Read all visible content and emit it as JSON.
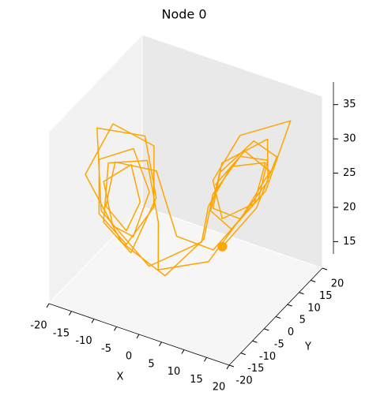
{
  "chart_data": {
    "type": "line3d",
    "title": "Node 0",
    "xlabel": "X",
    "ylabel": "Y",
    "xlim": [
      -20,
      20
    ],
    "ylim": [
      -20,
      20
    ],
    "zlim": [
      13.2,
      38.3
    ],
    "xticks": [
      -20,
      -15,
      -10,
      -5,
      0,
      5,
      10,
      15,
      20
    ],
    "yticks": [
      -20,
      -15,
      -10,
      -5,
      0,
      5,
      10,
      15,
      20
    ],
    "zticks": [
      15,
      20,
      25,
      30,
      35
    ],
    "series": [
      {
        "color": "#ffa500",
        "x": [
          4,
          9,
          13,
          11,
          6,
          4,
          6,
          10,
          12,
          9,
          5,
          3,
          -2,
          -8,
          -14,
          -12,
          -6,
          -5,
          -8,
          -12,
          -13,
          -9,
          -6,
          -7,
          -10,
          -12,
          -9,
          -7,
          -8,
          -11,
          -11,
          -6,
          -2,
          3,
          10,
          15,
          10,
          5,
          5,
          9,
          12,
          8,
          4,
          2,
          -4,
          -11,
          -14,
          -8,
          -5,
          -7,
          -11,
          -12,
          -7,
          -4,
          -3,
          3,
          11,
          13,
          7,
          4,
          7,
          12,
          10,
          5
        ],
        "y": [
          8,
          13,
          14,
          8,
          3,
          3,
          8,
          12,
          12,
          6,
          2,
          2,
          -5,
          -12,
          -16,
          -8,
          -2,
          -4,
          -10,
          -14,
          -12,
          -5,
          -4,
          -9,
          -12,
          -12,
          -6,
          -6,
          -10,
          -13,
          -9,
          -1,
          0,
          6,
          15,
          16,
          4,
          2,
          6,
          12,
          11,
          4,
          2,
          3,
          -8,
          -15,
          -11,
          -2,
          -3,
          -10,
          -14,
          -10,
          -3,
          -4,
          -6,
          4,
          14,
          10,
          2,
          4,
          10,
          13,
          6,
          3
        ],
        "z": [
          17,
          22,
          30,
          34,
          30,
          24,
          20,
          24,
          30,
          32,
          27,
          20,
          16,
          22,
          32,
          37,
          33,
          25,
          21,
          26,
          33,
          33,
          27,
          22,
          24,
          30,
          31,
          26,
          23,
          27,
          32,
          29,
          20,
          17,
          24,
          35,
          36,
          29,
          22,
          23,
          30,
          31,
          25,
          19,
          18,
          27,
          37,
          34,
          26,
          20,
          25,
          32,
          31,
          23,
          17,
          16,
          26,
          34,
          32,
          24,
          21,
          28,
          33,
          28
        ]
      }
    ]
  }
}
